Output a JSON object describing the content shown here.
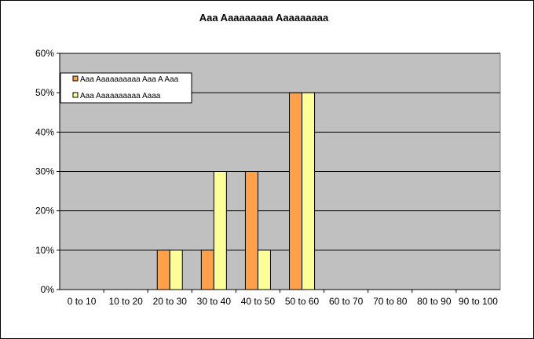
{
  "chart_data": {
    "type": "bar",
    "title": "Aaa Aaaaaaaaa Aaaaaaaaa",
    "xlabel": "",
    "ylabel": "",
    "categories": [
      "0 to 10",
      "10 to 20",
      "20 to 30",
      "30 to 40",
      "40 to 50",
      "50 to 60",
      "60 to 70",
      "70 to 80",
      "80 to 90",
      "90 to 100"
    ],
    "series": [
      {
        "name": "Aaa Aaaaaaaaaa Aaa A Aaa",
        "values": [
          0,
          0,
          10,
          10,
          30,
          50,
          0,
          0,
          0,
          0
        ],
        "color": "#ffa04a"
      },
      {
        "name": "Aaa Aaaaaaaaaa Aaaa",
        "values": [
          0,
          0,
          10,
          30,
          10,
          50,
          0,
          0,
          0,
          0
        ],
        "color": "#ffff99"
      }
    ],
    "ylim": [
      0,
      60
    ],
    "yticks": [
      "0%",
      "10%",
      "20%",
      "30%",
      "40%",
      "50%",
      "60%"
    ],
    "grid": true,
    "plot_background": "#c0c0c0",
    "legend_position": "top-left"
  }
}
